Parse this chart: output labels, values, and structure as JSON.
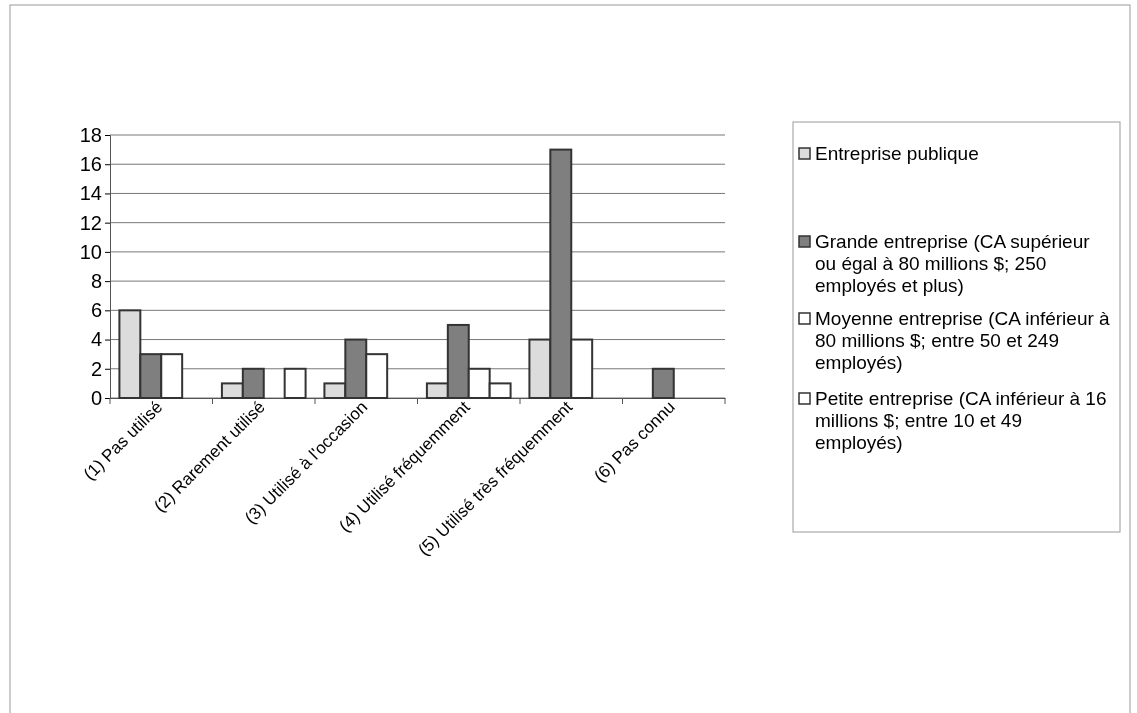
{
  "chart_data": {
    "type": "bar",
    "categories": [
      "(1) Pas utilisé",
      "(2) Rarement utilisé",
      "(3) Utilisé à l'occasion",
      "(4) Utilisé fréquemment",
      "(5) Utilisé très fréquemment",
      "(6) Pas connu"
    ],
    "series": [
      {
        "name": "Entreprise publique",
        "color": "#dcdcdc",
        "values": [
          6,
          1,
          1,
          1,
          4,
          0
        ]
      },
      {
        "name": "Grande entreprise (CA supérieur ou égal à 80 millions $; 250 employés et plus)",
        "color": "#7f7f7f",
        "values": [
          3,
          2,
          4,
          5,
          17,
          2
        ]
      },
      {
        "name": "Moyenne entreprise (CA inférieur à 80 millions $; entre 50 et 249 employés)",
        "color": "#ffffff",
        "values": [
          3,
          0,
          3,
          2,
          4,
          0
        ]
      },
      {
        "name": "Petite entreprise (CA inférieur à 16 millions $; entre 10 et 49 employés)",
        "color": "#ffffff",
        "values": [
          0,
          2,
          0,
          1,
          0,
          0
        ]
      }
    ],
    "ylim": [
      0,
      18
    ],
    "yticks": [
      0,
      2,
      4,
      6,
      8,
      10,
      12,
      14,
      16,
      18
    ],
    "grid": "y",
    "legend": "right"
  }
}
